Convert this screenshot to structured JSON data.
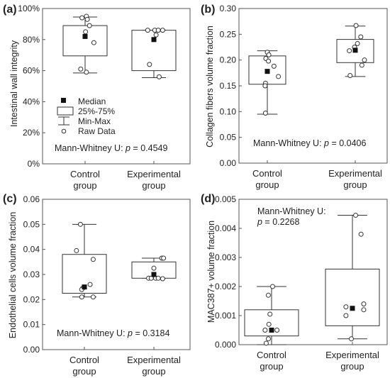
{
  "chart_data": [
    {
      "type": "box",
      "panel": "(a)",
      "ylabel": "Intestinal wall integrity",
      "ylim": [
        0,
        100
      ],
      "yticks": [
        0,
        20,
        40,
        60,
        80,
        100
      ],
      "ytick_labels": [
        "0%",
        "20%",
        "40%",
        "60%",
        "80%",
        "100%"
      ],
      "categories": [
        "Control\ngroup",
        "Experimental\ngroup"
      ],
      "boxes": [
        {
          "min": 58.5,
          "q1": 69.5,
          "median": 82,
          "q3": 89,
          "max": 94.5,
          "raw": [
            [
              -0.07,
              94
            ],
            [
              0.03,
              95
            ],
            [
              0.05,
              93
            ],
            [
              0.1,
              89
            ],
            [
              0.01,
              85
            ],
            [
              0.2,
              78
            ],
            [
              -0.1,
              61
            ],
            [
              0.03,
              59
            ]
          ]
        },
        {
          "min": 55.5,
          "q1": 60,
          "median": 80,
          "q3": 86,
          "max": 86,
          "raw": [
            [
              -0.14,
              86
            ],
            [
              0.02,
              86
            ],
            [
              0.1,
              86
            ],
            [
              0.2,
              86
            ],
            [
              0.05,
              83
            ],
            [
              -0.1,
              64
            ],
            [
              0.12,
              56
            ]
          ]
        }
      ],
      "stat_label": "Mann-Whitney U: ",
      "stat_p": "p",
      "stat_value": " = 0.4549"
    },
    {
      "type": "box",
      "panel": "(b)",
      "ylabel": "Collagen fibers volume fraction",
      "ylim": [
        0,
        0.3
      ],
      "yticks": [
        0,
        0.05,
        0.1,
        0.15,
        0.2,
        0.25,
        0.3
      ],
      "ytick_labels": [
        "0.00",
        "0.05",
        "0.10",
        "0.15",
        "0.20",
        "0.25",
        "0.30"
      ],
      "categories": [
        "Control\ngroup",
        "Experimental\ngroup"
      ],
      "boxes": [
        {
          "min": 0.095,
          "q1": 0.153,
          "median": 0.178,
          "q3": 0.208,
          "max": 0.218,
          "raw": [
            [
              0.0,
              0.215
            ],
            [
              0.04,
              0.21
            ],
            [
              -0.04,
              0.203
            ],
            [
              0.03,
              0.198
            ],
            [
              0.18,
              0.188
            ],
            [
              0.3,
              0.168
            ],
            [
              -0.05,
              0.155
            ],
            [
              -0.06,
              0.15
            ],
            [
              -0.05,
              0.097
            ]
          ]
        },
        {
          "min": 0.168,
          "q1": 0.195,
          "median": 0.219,
          "q3": 0.24,
          "max": 0.266,
          "raw": [
            [
              0.02,
              0.267
            ],
            [
              0.15,
              0.245
            ],
            [
              0.06,
              0.232
            ],
            [
              -0.16,
              0.218
            ],
            [
              -0.02,
              0.225
            ],
            [
              0.25,
              0.2
            ],
            [
              0.18,
              0.19
            ],
            [
              -0.14,
              0.17
            ]
          ]
        }
      ],
      "stat_label": "Mann-Whitney U: ",
      "stat_p": "p",
      "stat_value": " = 0.0406"
    },
    {
      "type": "box",
      "panel": "(c)",
      "ylabel": "Endothelial cells volume fraction",
      "ylim": [
        0,
        0.06
      ],
      "yticks": [
        0,
        0.01,
        0.02,
        0.03,
        0.04,
        0.05,
        0.06
      ],
      "ytick_labels": [
        "0.00",
        "0.01",
        "0.02",
        "0.03",
        "0.04",
        "0.05",
        "0.06"
      ],
      "categories": [
        "Control\ngroup",
        "Experimental\ngroup"
      ],
      "boxes": [
        {
          "min": 0.021,
          "q1": 0.0225,
          "median": 0.025,
          "q3": 0.038,
          "max": 0.05,
          "raw": [
            [
              -0.09,
              0.05
            ],
            [
              -0.18,
              0.0395
            ],
            [
              0.2,
              0.036
            ],
            [
              0.13,
              0.026
            ],
            [
              -0.04,
              0.0245
            ],
            [
              -0.06,
              0.024
            ],
            [
              -0.06,
              0.021
            ],
            [
              0.2,
              0.021
            ]
          ]
        },
        {
          "min": 0.0285,
          "q1": 0.0285,
          "median": 0.03,
          "q3": 0.035,
          "max": 0.0365,
          "raw": [
            [
              0.18,
              0.0365
            ],
            [
              0.22,
              0.0365
            ],
            [
              0.0,
              0.0325
            ],
            [
              -0.12,
              0.0285
            ],
            [
              -0.06,
              0.0285
            ],
            [
              0.04,
              0.0285
            ],
            [
              0.1,
              0.0285
            ],
            [
              0.2,
              0.0283
            ]
          ]
        }
      ],
      "stat_label": "Mann-Whitney U: ",
      "stat_p": "p",
      "stat_value": " = 0.3184"
    },
    {
      "type": "box",
      "panel": "(d)",
      "ylabel": "MAC387+ volume fraction",
      "ylim": [
        0,
        0.005
      ],
      "yticks": [
        0,
        0.001,
        0.002,
        0.003,
        0.004,
        0.005
      ],
      "ytick_labels": [
        "0.000",
        "0.001",
        "0.002",
        "0.003",
        "0.004",
        "0.005"
      ],
      "categories": [
        "Control\ngroup",
        "Experimental\ngroup"
      ],
      "boxes": [
        {
          "min": 0.0,
          "q1": 0.0003,
          "median": 0.0005,
          "q3": 0.0012,
          "max": 0.002,
          "raw": [
            [
              0.02,
              0.002
            ],
            [
              -0.06,
              0.0017
            ],
            [
              -0.03,
              0.00105
            ],
            [
              -0.12,
              0.0005
            ],
            [
              -0.05,
              0.0007
            ],
            [
              0.1,
              0.0005
            ],
            [
              -0.1,
              5e-05
            ],
            [
              -0.06,
              0.0002
            ]
          ]
        },
        {
          "min": 0.0002,
          "q1": 0.00065,
          "median": 0.00125,
          "q3": 0.0026,
          "max": 0.00445,
          "raw": [
            [
              0.06,
              0.00445
            ],
            [
              0.16,
              0.0038
            ],
            [
              0.21,
              0.0014
            ],
            [
              0.21,
              0.0012
            ],
            [
              -0.12,
              0.0013
            ],
            [
              -0.12,
              0.001
            ],
            [
              -0.02,
              0.0002
            ]
          ]
        }
      ],
      "stat_label": "Mann-Whitney U:",
      "stat_p": "p",
      "stat_value": " = 0.2268"
    }
  ],
  "legend": {
    "median": "Median",
    "box": "25%-75%",
    "whisker": "Min-Max",
    "raw": "Raw Data"
  }
}
